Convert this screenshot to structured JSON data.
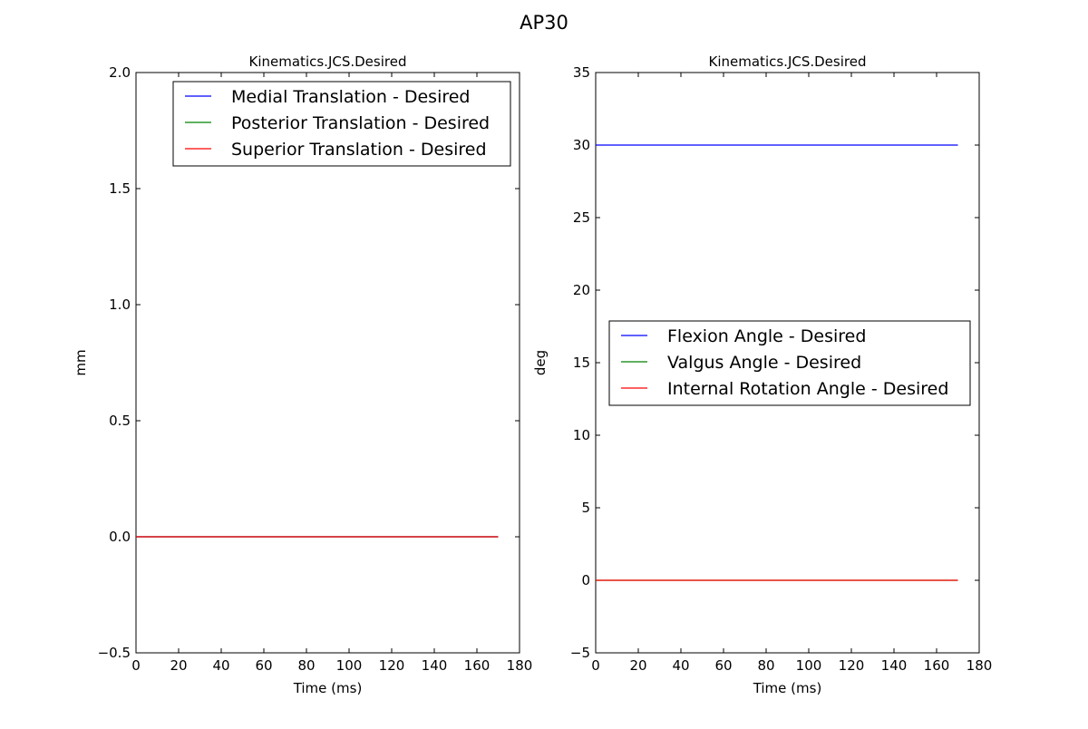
{
  "figure": {
    "title": "AP30"
  },
  "chart_data": [
    {
      "type": "line",
      "title": "Kinematics.JCS.Desired",
      "xlabel": "Time (ms)",
      "ylabel": "mm",
      "xlim": [
        0,
        180
      ],
      "ylim": [
        -0.5,
        2.0
      ],
      "xticks": [
        0,
        20,
        40,
        60,
        80,
        100,
        120,
        140,
        160,
        180
      ],
      "yticks": [
        -0.5,
        0.0,
        0.5,
        1.0,
        1.5,
        2.0
      ],
      "xtick_labels": [
        "0",
        "20",
        "40",
        "60",
        "80",
        "100",
        "120",
        "140",
        "160",
        "180"
      ],
      "ytick_labels": [
        "−0.5",
        "0.0",
        "0.5",
        "1.0",
        "1.5",
        "2.0"
      ],
      "grid": false,
      "legend_position": "top-right",
      "series": [
        {
          "name": "Medial Translation - Desired",
          "color": "#0000ff",
          "x": [
            0,
            170
          ],
          "y": [
            0,
            0
          ]
        },
        {
          "name": "Posterior Translation - Desired",
          "color": "#008000",
          "x": [
            0,
            170
          ],
          "y": [
            0,
            0
          ]
        },
        {
          "name": "Superior Translation - Desired",
          "color": "#ff0000",
          "x": [
            0,
            170
          ],
          "y": [
            0,
            0
          ]
        }
      ]
    },
    {
      "type": "line",
      "title": "Kinematics.JCS.Desired",
      "xlabel": "Time (ms)",
      "ylabel": "deg",
      "xlim": [
        0,
        180
      ],
      "ylim": [
        -5,
        35
      ],
      "xticks": [
        0,
        20,
        40,
        60,
        80,
        100,
        120,
        140,
        160,
        180
      ],
      "yticks": [
        -5,
        0,
        5,
        10,
        15,
        20,
        25,
        30,
        35
      ],
      "xtick_labels": [
        "0",
        "20",
        "40",
        "60",
        "80",
        "100",
        "120",
        "140",
        "160",
        "180"
      ],
      "ytick_labels": [
        "−5",
        "0",
        "5",
        "10",
        "15",
        "20",
        "25",
        "30",
        "35"
      ],
      "grid": false,
      "legend_position": "center-right",
      "series": [
        {
          "name": "Flexion Angle - Desired",
          "color": "#0000ff",
          "x": [
            0,
            170
          ],
          "y": [
            30,
            30
          ]
        },
        {
          "name": "Valgus Angle - Desired",
          "color": "#008000",
          "x": [
            0,
            170
          ],
          "y": [
            0,
            0
          ]
        },
        {
          "name": "Internal Rotation Angle - Desired",
          "color": "#ff0000",
          "x": [
            0,
            170
          ],
          "y": [
            0,
            0
          ]
        }
      ]
    }
  ]
}
